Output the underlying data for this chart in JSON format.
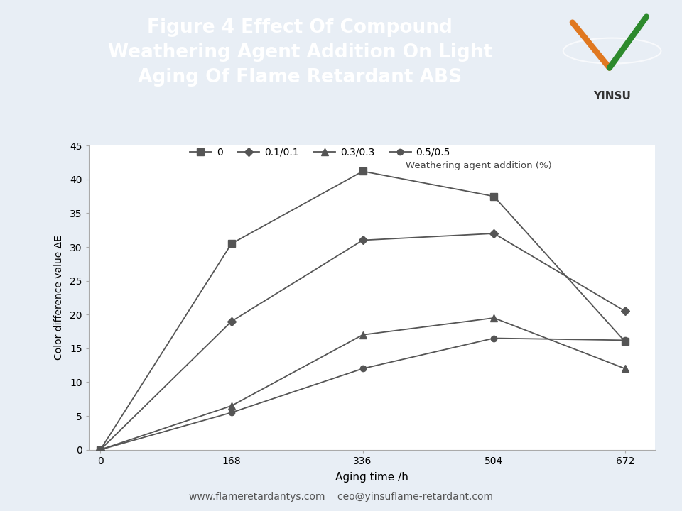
{
  "title_line1": "Figure 4 Effect Of Compound",
  "title_line2": "Weathering Agent Addition On Light",
  "title_line3": "Aging Of Flame Retardant ABS",
  "title_bg_color": "#5b8dd9",
  "title_text_color": "#ffffff",
  "outer_bg_color": "#e8eef5",
  "plot_bg_color": "#ffffff",
  "xlabel": "Aging time /h",
  "ylabel": "Color difference value ΔE",
  "weathering_label": "Weathering agent addition (%)",
  "footer_text": "www.flameretardantys.com    ceo@yinsuflame-retardant.com",
  "x_values": [
    0,
    168,
    336,
    504,
    672
  ],
  "series": [
    {
      "label": "0",
      "marker": "s",
      "linestyle": "-",
      "color": "#555555",
      "markersize": 7,
      "y_values": [
        0,
        30.5,
        41.2,
        37.5,
        16.0
      ]
    },
    {
      "label": "0.1/0.1",
      "marker": "D",
      "linestyle": "-",
      "color": "#555555",
      "markersize": 6,
      "y_values": [
        0,
        19.0,
        31.0,
        32.0,
        20.5
      ]
    },
    {
      "label": "0.3/0.3",
      "marker": "^",
      "linestyle": "-",
      "color": "#555555",
      "markersize": 7,
      "y_values": [
        0,
        6.5,
        17.0,
        19.5,
        12.0
      ]
    },
    {
      "label": "0.5/0.5",
      "marker": "o",
      "linestyle": "-",
      "color": "#555555",
      "markersize": 6,
      "y_values": [
        0,
        5.5,
        12.0,
        16.5,
        16.2
      ]
    }
  ],
  "ylim": [
    0,
    45
  ],
  "yticks": [
    0,
    5,
    10,
    15,
    20,
    25,
    30,
    35,
    40,
    45
  ],
  "xticks": [
    0,
    168,
    336,
    504,
    672
  ],
  "logo_green": "#2d8a2d",
  "logo_orange": "#e07820",
  "logo_text_color": "#333333",
  "spine_color": "#aaaaaa"
}
